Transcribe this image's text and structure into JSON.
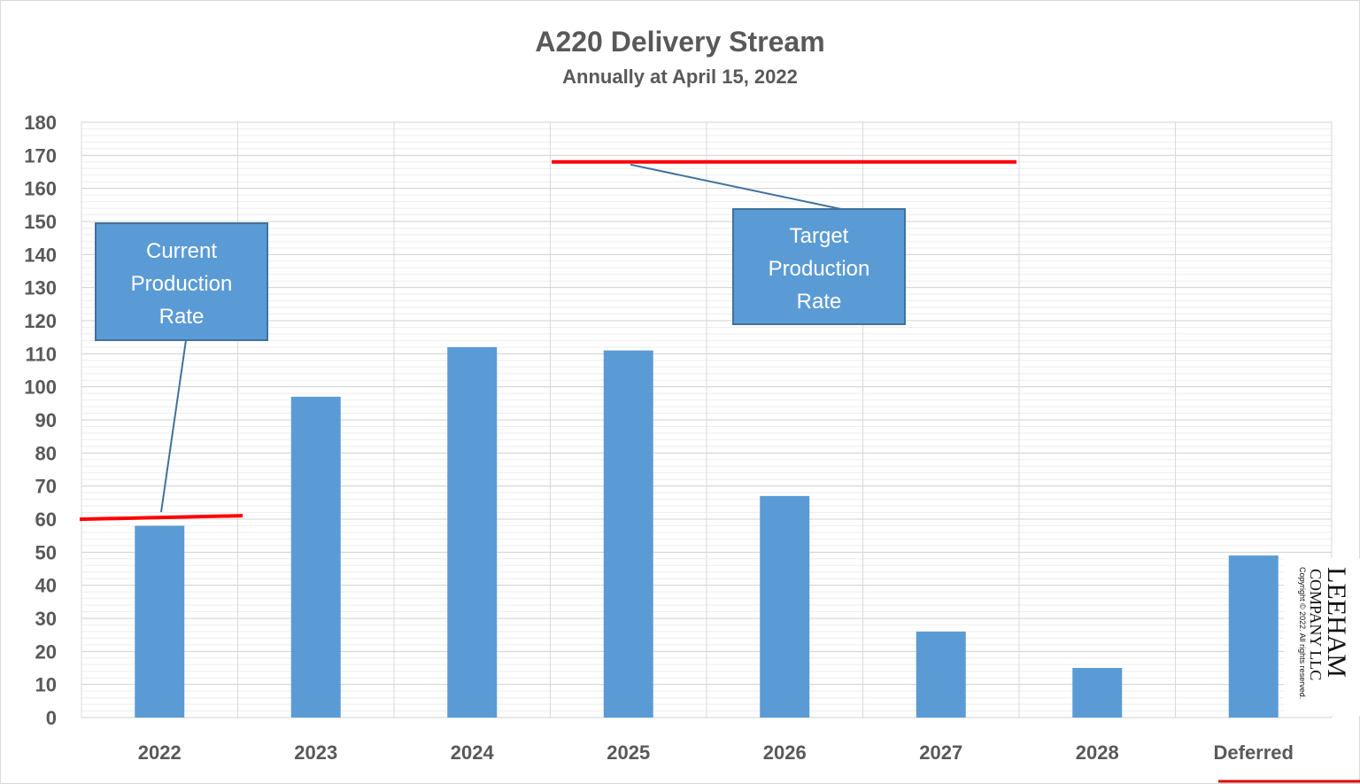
{
  "chart_data": {
    "type": "bar",
    "title": "A220 Delivery Stream",
    "subtitle": "Annually at April 15, 2022",
    "categories": [
      "2022",
      "2023",
      "2024",
      "2025",
      "2026",
      "2027",
      "2028",
      "Deferred"
    ],
    "values": [
      58,
      97,
      112,
      111,
      67,
      26,
      15,
      49
    ],
    "ylim": [
      0,
      180
    ],
    "yticks": [
      0,
      10,
      20,
      30,
      40,
      50,
      60,
      70,
      80,
      90,
      100,
      110,
      120,
      130,
      140,
      150,
      160,
      170,
      180
    ],
    "grid": true,
    "bar_color": "#5b9bd5",
    "annotations": [
      {
        "text_lines": [
          "Current",
          "Production",
          "Rate"
        ],
        "line_value": 60.5,
        "line_from_category": 0,
        "line_to_category": 0,
        "line_color": "#ff0000"
      },
      {
        "text_lines": [
          "Target",
          "Production",
          "Rate"
        ],
        "line_value": 168,
        "line_from_category": 3,
        "line_to_category": 6,
        "line_color": "#ff0000"
      }
    ]
  },
  "watermark": {
    "initial_letter": "L",
    "name_rest": "EEHAM",
    "line2_initial": "C",
    "line2_rest": "OMPANY",
    "suffix": "LLC",
    "copyright": "Copyright © 2022. All rights reserved."
  }
}
